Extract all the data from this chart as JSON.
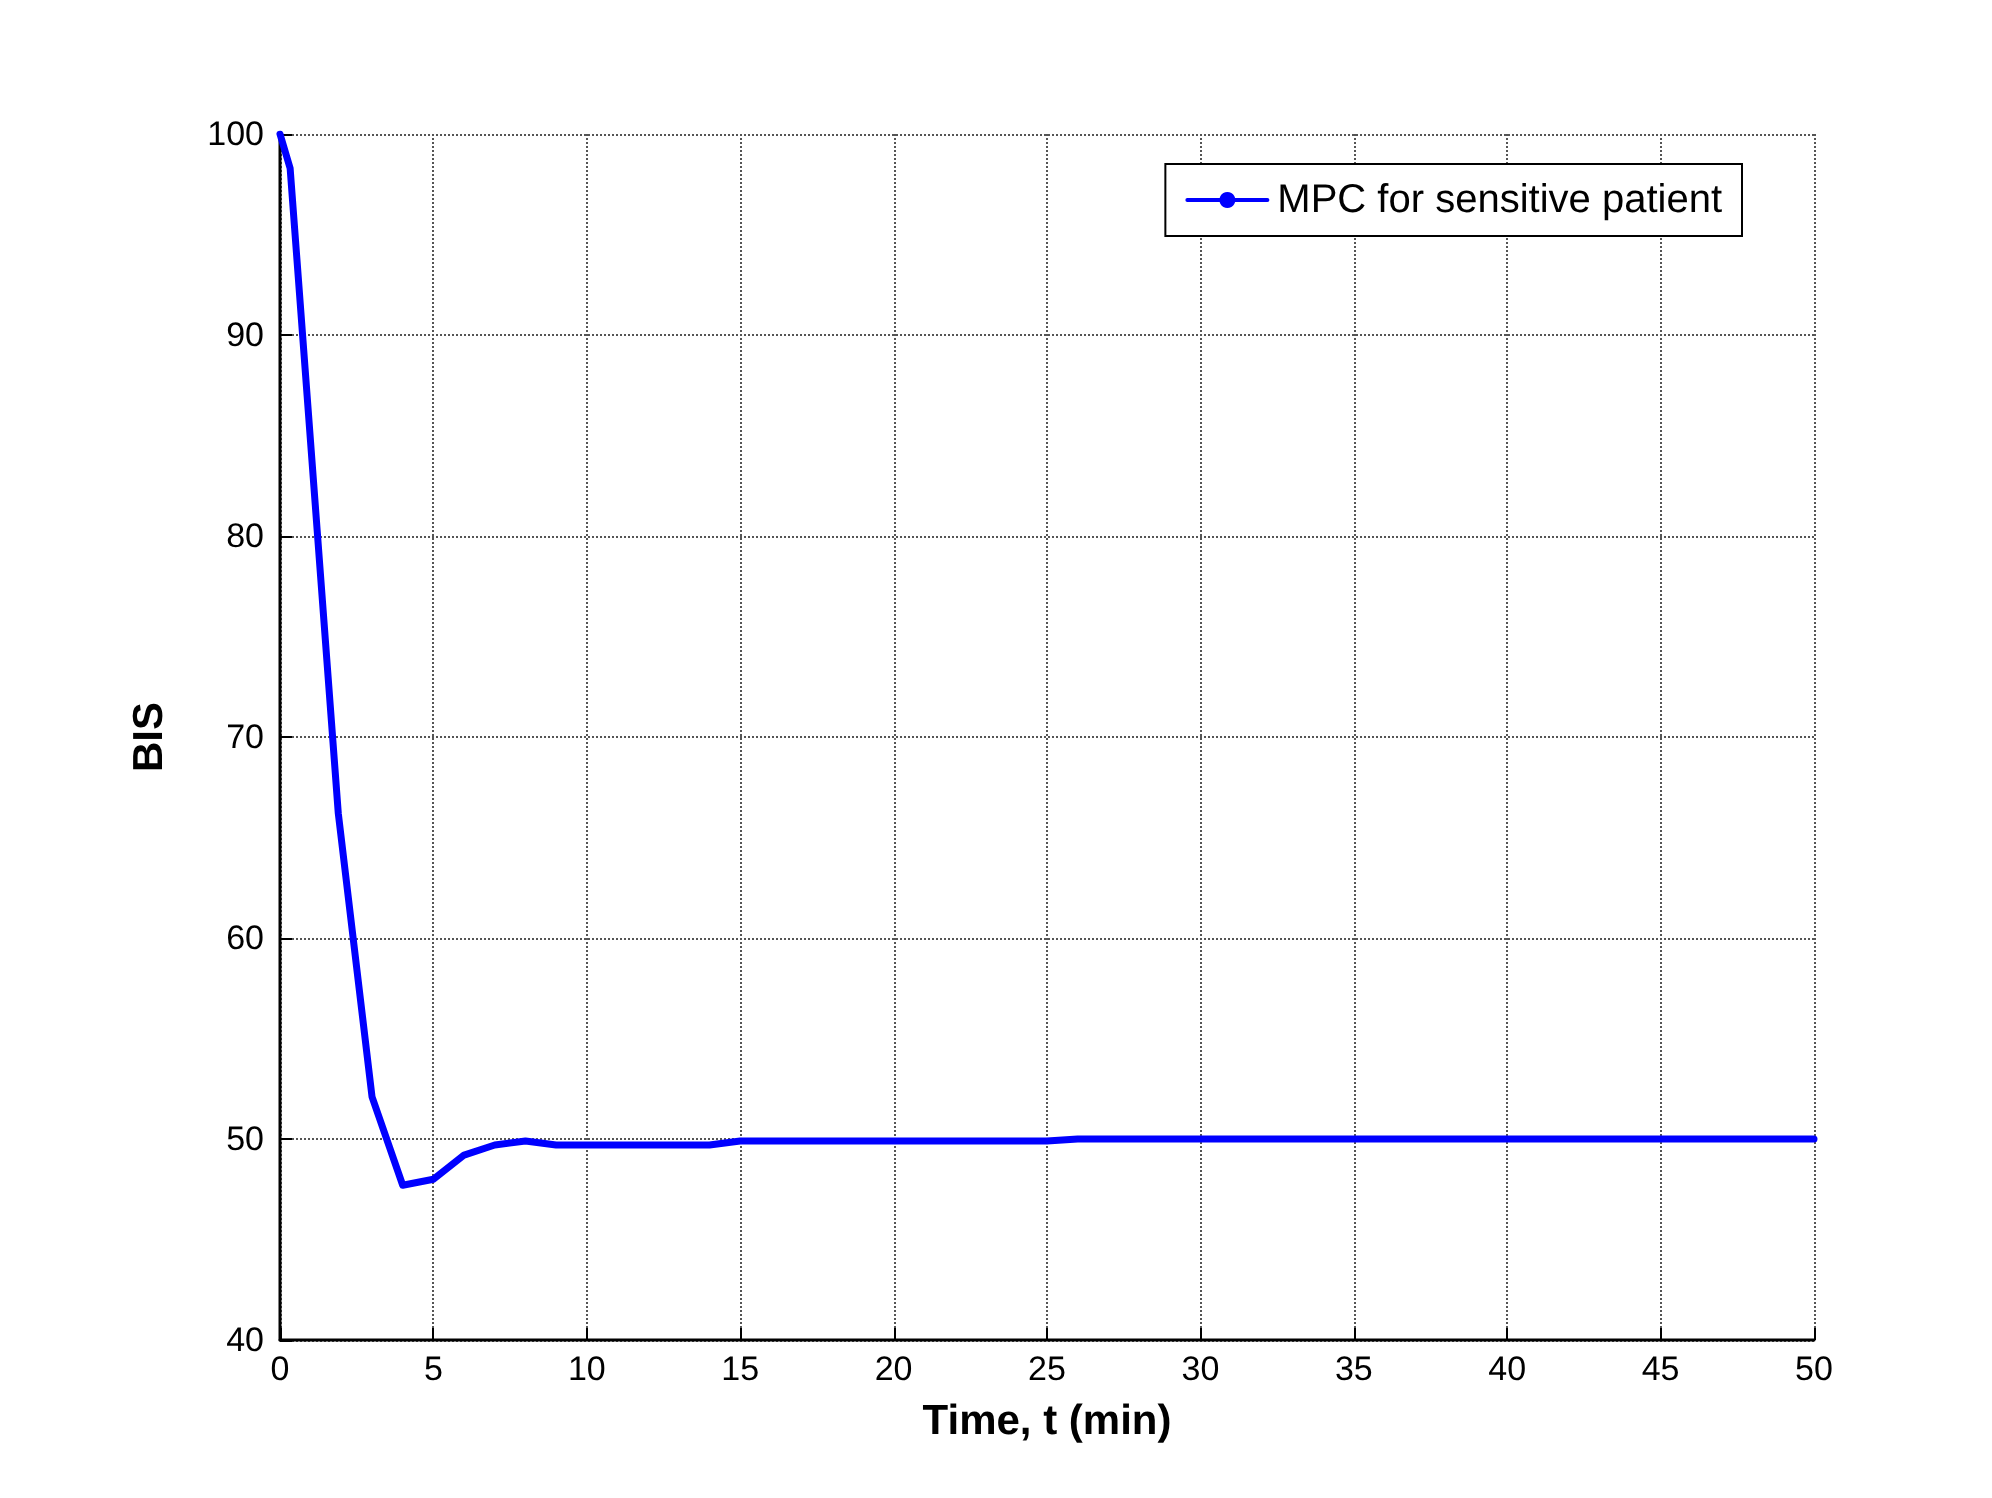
{
  "chart_data": {
    "type": "line",
    "xlabel": "Time, t (min)",
    "ylabel": "BIS",
    "series": [
      {
        "name": "MPC for sensitive patient",
        "color": "#0000ff",
        "x": [
          0,
          0.33,
          1.9,
          3,
          4,
          5,
          6,
          7,
          8,
          9,
          10,
          14,
          15,
          25,
          26,
          50
        ],
        "values": [
          100,
          98.3,
          66.2,
          52.1,
          47.7,
          48,
          49.2,
          49.7,
          49.9,
          49.7,
          49.7,
          49.7,
          49.9,
          49.9,
          50,
          50
        ]
      }
    ],
    "xlim": [
      0,
      50
    ],
    "xticks": [
      0,
      5,
      10,
      15,
      20,
      25,
      30,
      35,
      40,
      45,
      50
    ],
    "ylim": [
      40,
      100
    ],
    "yticks": [
      40,
      50,
      60,
      70,
      80,
      90,
      100
    ],
    "grid": true,
    "legend": "top right",
    "marker": "none",
    "line_style": "solid"
  }
}
